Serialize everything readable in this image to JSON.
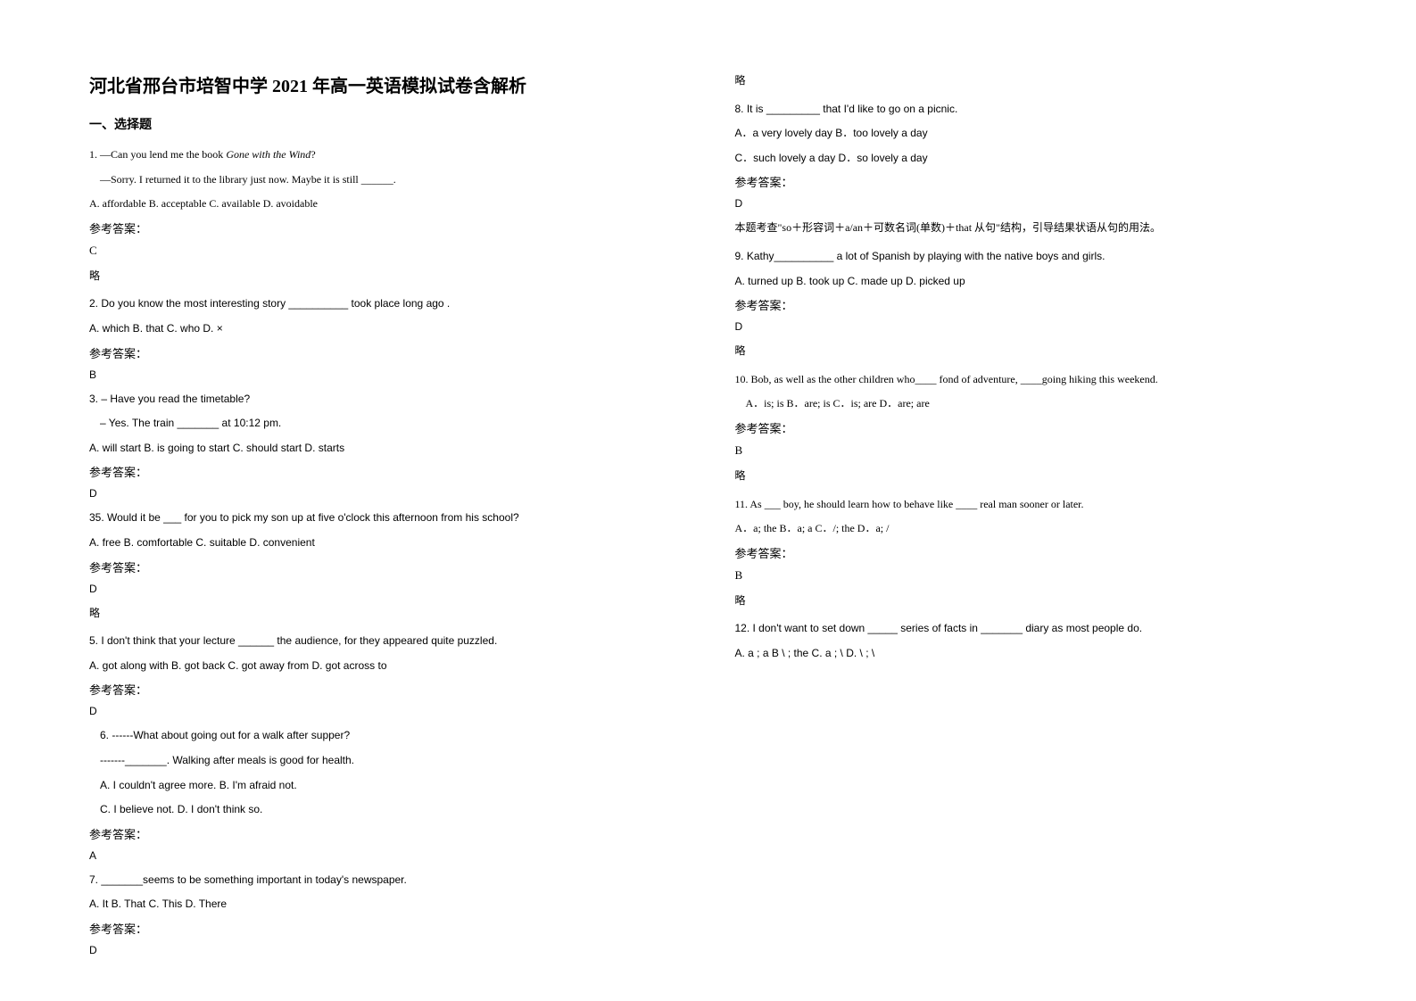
{
  "title": "河北省邢台市培智中学 2021 年高一英语模拟试卷含解析",
  "section1": "一、选择题",
  "answer_label": "参考答案：",
  "omit": "略",
  "q1": {
    "line1": "1. —Can you lend me the book ",
    "italic": "Gone with the Wind",
    "line1b": "?",
    "line2": "—Sorry. I returned it to the library just now. Maybe it is still ______.",
    "choices": "A. affordable     B. acceptable     C. available     D. avoidable",
    "answer": "C"
  },
  "q2": {
    "line1": "2. Do you know the most interesting story __________ took place long ago .",
    "choices": "A. which   B. that   C. who   D. ×",
    "answer": "B"
  },
  "q3": {
    "line1": "3. – Have you read the timetable?",
    "line2": "– Yes. The train _______ at 10:12 pm.",
    "choices": "A. will start              B. is going to start              C. should start                       D. starts",
    "answer": "D"
  },
  "q4": {
    "line1": "35. Would it be ___ for you to pick my son up at five o'clock this afternoon from his school?",
    "choices": "   A. free       B. comfortable        C. suitable     D. convenient",
    "answer": "D"
  },
  "q5": {
    "line1": "5. I don't think that your lecture ______ the audience, for they appeared quite puzzled.",
    "choices": "A. got along with    B. got back   C. got away from   D. got across to",
    "answer": "D"
  },
  "q6": {
    "line1": "6. ------What about going out for a walk after supper?",
    "line2": "-------_______. Walking after meals is good for health.",
    "choices1": "A. I couldn't agree more.      B. I'm afraid not.",
    "choices2": "C. I believe not.              D. I don't think so.",
    "answer": "A"
  },
  "q7": {
    "line1": "7. _______seems to be something important in today's newspaper.",
    "choices": "   A. It      B. That    C. This    D. There",
    "answer": "D"
  },
  "q8": {
    "line1": "8. It is _________ that I'd like to go on a picnic.",
    "choices1": "A．a very lovely day            B．too lovely a day",
    "choices2": "C．such lovely a day            D．so lovely a day",
    "answer": "D",
    "explanation": "本题考查\"so＋形容词＋a/an＋可数名词(单数)＋that 从句\"结构，引导结果状语从句的用法。"
  },
  "q9": {
    "line1": "9. Kathy__________ a lot of Spanish by playing with the native boys and girls.",
    "choices": "   A. turned up                B. took up                C. made up                D. picked up",
    "answer": "D"
  },
  "q10": {
    "line1": "10. Bob, as well as the other children who____ fond of adventure, ____going hiking this weekend.",
    "choices": "A．is; is     B．are; is   C．is; are     D．are; are",
    "answer": "B"
  },
  "q11": {
    "line1": "11. As ___ boy, he should learn how to behave like ____ real man sooner or later.",
    "choices": " A．a;  the    B．a; a     C．/; the     D．a;  /",
    "answer": "B"
  },
  "q12": {
    "line1": "12. I don't want to set down _____ series of facts in _______ diary as most people do.",
    "choices": "     A. a ; a      B \\ ; the        C. a ; \\          D. \\ ; \\"
  }
}
